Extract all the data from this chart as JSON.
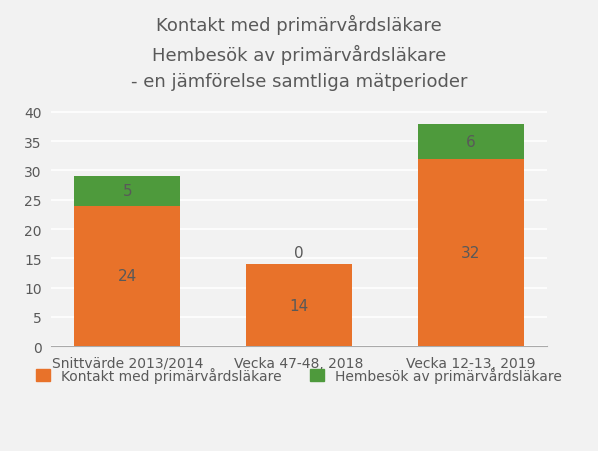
{
  "title": "Kontakt med primärvårdsläkare\nHembesök av primärvårdsläkare\n- en jämförelse samtliga mätperioder",
  "categories": [
    "Snittvärde 2013/2014",
    "Vecka 47-48, 2018",
    "Vecka 12-13, 2019"
  ],
  "orange_values": [
    24,
    14,
    32
  ],
  "green_values": [
    5,
    0,
    6
  ],
  "orange_color": "#E8722A",
  "green_color": "#4E9A3C",
  "ylim": [
    0,
    42
  ],
  "yticks": [
    0,
    5,
    10,
    15,
    20,
    25,
    30,
    35,
    40
  ],
  "legend_orange": "Kontakt med primärvårdsläkare",
  "legend_green": "Hembesök av primärvårdsläkare",
  "bar_width": 0.62,
  "background_color": "#f2f2f2",
  "plot_bg_color": "#f2f2f2",
  "grid_color": "#ffffff",
  "label_fontsize": 11,
  "title_fontsize": 13,
  "tick_fontsize": 10,
  "legend_fontsize": 10,
  "title_color": "#595959",
  "tick_color": "#595959",
  "label_color_orange": "#595959",
  "label_color_green_pos": "#595959",
  "label_color_zero": "#595959"
}
